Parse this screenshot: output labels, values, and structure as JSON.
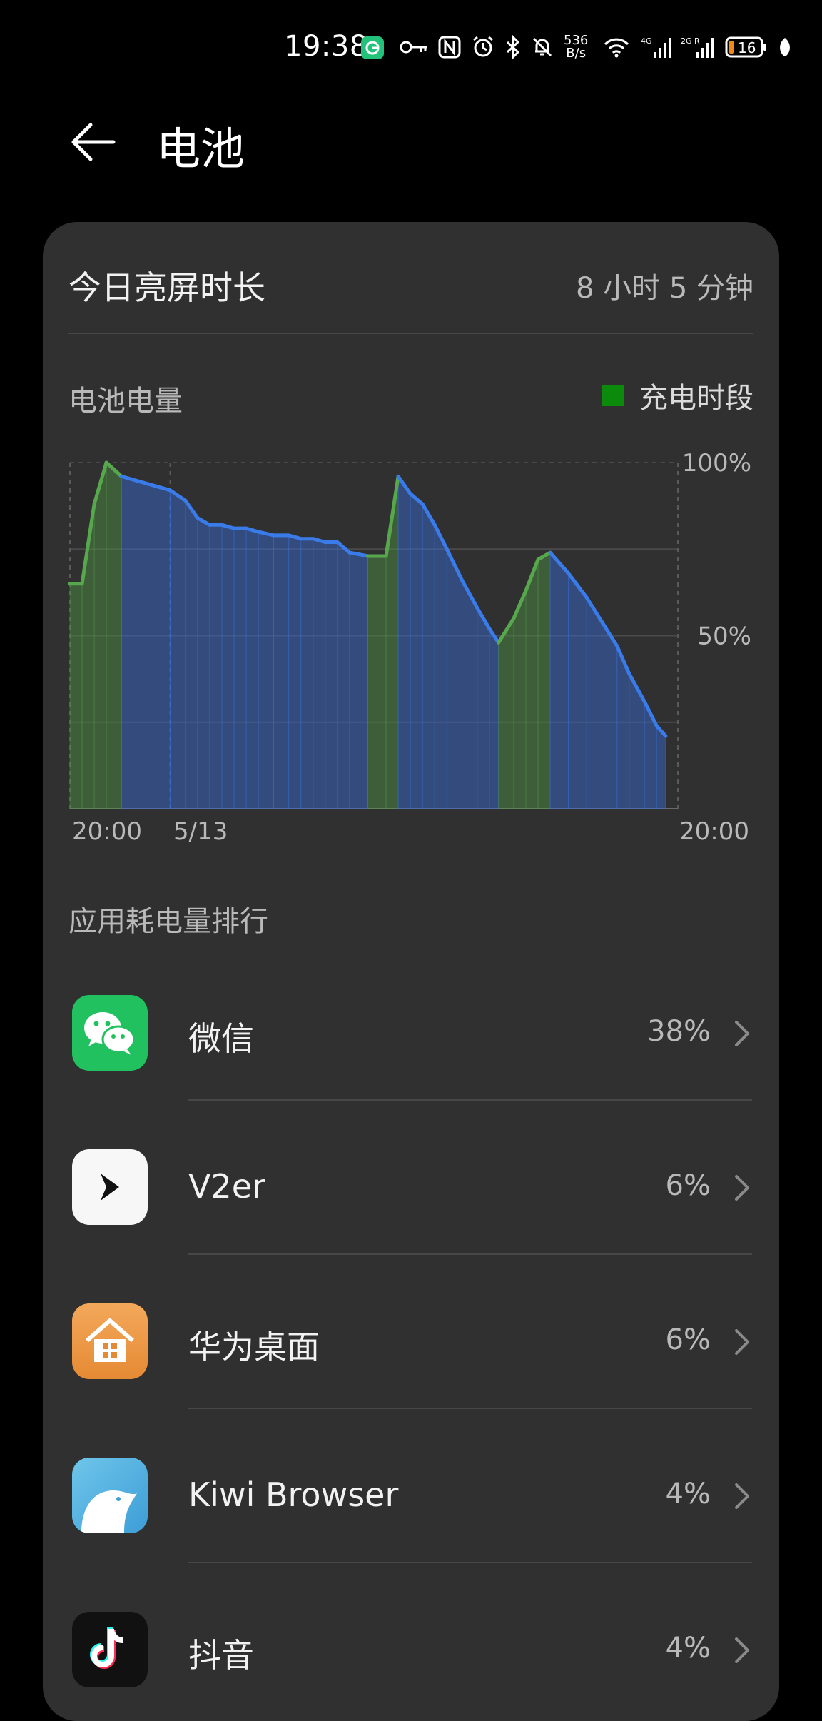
{
  "status_bar": {
    "time": "19:38",
    "net_speed_value": "536",
    "net_speed_unit": "B/s",
    "battery_level": "16",
    "icons": [
      "app-notification-icon",
      "key-icon",
      "nfc-icon",
      "alarm-icon",
      "bluetooth-icon",
      "mute-bell-icon",
      "wifi-icon",
      "signal-4g-icon",
      "signal-2g-icon",
      "battery-icon",
      "leaf-icon"
    ]
  },
  "header": {
    "title": "电池"
  },
  "screen_time": {
    "label": "今日亮屏时长",
    "value": "8 小时 5 分钟"
  },
  "battery_section": {
    "label": "电池电量",
    "legend_label": "充电时段",
    "colors": {
      "charging": "#57a84d",
      "discharging": "#3a7bea"
    }
  },
  "chart_data": {
    "type": "area",
    "y_ticks": [
      "100%",
      "50%"
    ],
    "x_ticks": [
      "20:00",
      "5/13",
      "20:00"
    ],
    "ylim": [
      0,
      100
    ],
    "grid": true,
    "series": [
      {
        "values": [
          [
            0.0,
            65
          ],
          [
            0.02,
            65
          ],
          [
            0.04,
            88
          ],
          [
            0.06,
            100
          ],
          [
            0.085,
            96
          ],
          [
            0.165,
            92
          ],
          [
            0.19,
            89
          ],
          [
            0.21,
            84
          ],
          [
            0.23,
            82
          ],
          [
            0.25,
            82
          ],
          [
            0.27,
            81
          ],
          [
            0.29,
            81
          ],
          [
            0.31,
            80
          ],
          [
            0.335,
            79
          ],
          [
            0.36,
            79
          ],
          [
            0.38,
            78
          ],
          [
            0.4,
            78
          ],
          [
            0.42,
            77
          ],
          [
            0.44,
            77
          ],
          [
            0.46,
            74
          ],
          [
            0.49,
            73
          ],
          [
            0.52,
            73
          ],
          [
            0.54,
            96
          ],
          [
            0.56,
            91
          ],
          [
            0.58,
            88
          ],
          [
            0.6,
            82
          ],
          [
            0.62,
            75
          ],
          [
            0.645,
            66
          ],
          [
            0.67,
            58
          ],
          [
            0.69,
            52
          ],
          [
            0.705,
            48
          ],
          [
            0.73,
            55
          ],
          [
            0.75,
            63
          ],
          [
            0.77,
            72
          ],
          [
            0.79,
            74
          ],
          [
            0.82,
            68
          ],
          [
            0.85,
            61
          ],
          [
            0.875,
            54
          ],
          [
            0.9,
            47
          ],
          [
            0.92,
            39
          ],
          [
            0.945,
            31
          ],
          [
            0.965,
            24
          ],
          [
            0.98,
            21
          ]
        ]
      }
    ],
    "charging_segments": [
      [
        0.0,
        0.085
      ],
      [
        0.49,
        0.54
      ],
      [
        0.705,
        0.79
      ]
    ]
  },
  "ranking": {
    "title": "应用耗电量排行",
    "apps": [
      {
        "name": "微信",
        "percent": "38%",
        "icon": "wechat-icon"
      },
      {
        "name": "V2er",
        "percent": "6%",
        "icon": "v2er-icon"
      },
      {
        "name": "华为桌面",
        "percent": "6%",
        "icon": "huawei-launcher-icon"
      },
      {
        "name": "Kiwi Browser",
        "percent": "4%",
        "icon": "kiwi-browser-icon"
      },
      {
        "name": "抖音",
        "percent": "4%",
        "icon": "douyin-icon"
      }
    ]
  }
}
